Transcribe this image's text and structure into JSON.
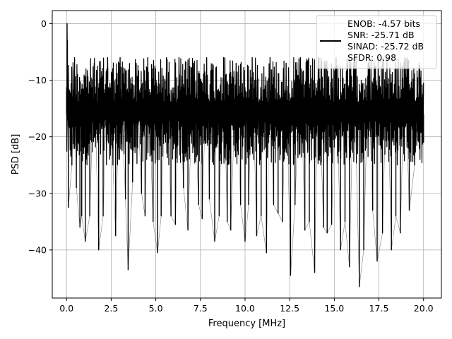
{
  "chart_data": {
    "type": "line",
    "title": "",
    "xlabel": "Frequency [MHz]",
    "ylabel": "PSD [dB]",
    "xlim": [
      -0.8,
      21.0
    ],
    "ylim": [
      -48.5,
      2.3
    ],
    "xticks": [
      0.0,
      2.5,
      5.0,
      7.5,
      10.0,
      12.5,
      15.0,
      17.5,
      20.0
    ],
    "xtick_labels": [
      "0.0",
      "2.5",
      "5.0",
      "7.5",
      "10.0",
      "12.5",
      "15.0",
      "17.5",
      "20.0"
    ],
    "yticks": [
      0,
      -10,
      -20,
      -30,
      -40
    ],
    "ytick_labels": [
      "0",
      "−10",
      "−20",
      "−30",
      "−40"
    ],
    "grid": true,
    "legend_position": "top-right",
    "legend": {
      "lines": [
        "ENOB: -4.57 bits",
        "SNR: -25.71 dB",
        "SINAD: -25.72 dB",
        "SFDR: 0.98"
      ]
    },
    "series": [
      {
        "color": "#000000",
        "noise_floor_db": -16,
        "typical_range_db": [
          -25,
          -6
        ],
        "x": [
          0.0,
          0.03,
          0.05,
          0.1,
          0.3,
          0.45,
          0.55,
          0.75,
          0.85,
          1.05,
          1.3,
          1.55,
          1.8,
          2.05,
          2.3,
          2.6,
          2.75,
          3.0,
          3.3,
          3.45,
          3.7,
          3.9,
          4.2,
          4.4,
          4.55,
          4.85,
          5.1,
          5.3,
          5.6,
          5.85,
          6.1,
          6.3,
          6.55,
          6.8,
          7.1,
          7.4,
          7.6,
          7.85,
          8.0,
          8.3,
          8.55,
          8.8,
          9.0,
          9.2,
          9.5,
          9.75,
          10.0,
          10.2,
          10.4,
          10.65,
          10.9,
          11.2,
          11.4,
          11.6,
          11.85,
          12.1,
          12.3,
          12.55,
          12.8,
          13.1,
          13.35,
          13.6,
          13.9,
          14.1,
          14.4,
          14.6,
          14.85,
          15.1,
          15.35,
          15.6,
          15.85,
          16.1,
          16.4,
          16.65,
          16.9,
          17.15,
          17.4,
          17.7,
          17.95,
          18.2,
          18.45,
          18.7,
          18.95,
          19.2,
          19.5,
          19.75,
          20.0
        ],
        "y": [
          -12,
          0,
          -3,
          -32.5,
          -25,
          -6,
          -29,
          -36,
          -34,
          -38.5,
          -34,
          -7,
          -40,
          -34,
          -6,
          -25,
          -37.5,
          -6,
          -31,
          -43.5,
          -28,
          -7,
          -30,
          -34,
          -6,
          -35,
          -40.5,
          -34,
          -6,
          -34,
          -35.5,
          -6,
          -29,
          -36.5,
          -7,
          -32,
          -34.5,
          -6,
          -31,
          -38.5,
          -34,
          -6,
          -35,
          -36.5,
          -7,
          -32,
          -38.5,
          -32,
          -6,
          -37.5,
          -34,
          -40.5,
          -6,
          -32,
          -33.5,
          -35,
          -7,
          -44.5,
          -32,
          -6,
          -36.5,
          -35,
          -44,
          -6,
          -36,
          -37,
          -35.5,
          -6,
          -40,
          -35,
          -43,
          -6,
          -46.5,
          -40,
          -7,
          -33,
          -42,
          -37,
          -6,
          -40,
          -34,
          -37,
          -6,
          -33,
          -25,
          -7,
          -21
        ]
      }
    ]
  }
}
